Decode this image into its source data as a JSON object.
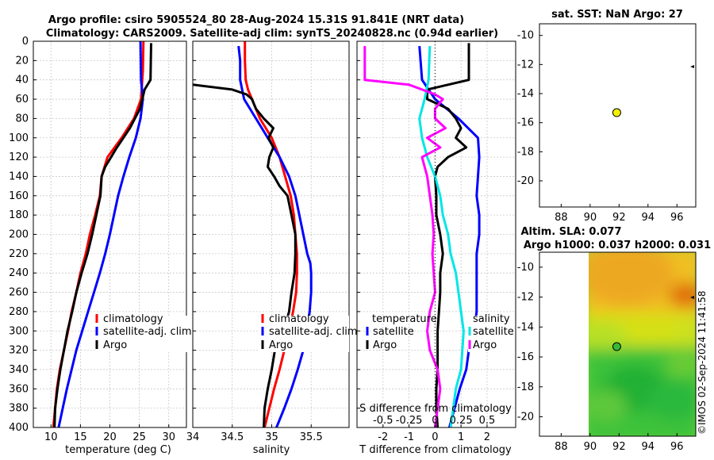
{
  "title": {
    "line1": "Argo profile: csiro 5905524_80 28-Aug-2024 15.31S 91.841E (NRT data)",
    "line2": "Climatology: CARS2009. Satellite-adj clim: synTS_20240828.nc (0.94d earlier)"
  },
  "stamp": "©IMOS 02-Sep-2024 11:41:58",
  "colors": {
    "climatology": "#ff0000",
    "satellite": "#0000ff",
    "argo": "#000000",
    "t_satellite": "#00e6e6",
    "s_diff": "#ff00ff"
  },
  "chart_data": [
    {
      "type": "line",
      "name": "temperature",
      "xlabel": "temperature (deg C)",
      "xlim": [
        7,
        33
      ],
      "ylim": [
        400,
        0
      ],
      "yticks": [
        0,
        20,
        40,
        60,
        80,
        100,
        120,
        140,
        160,
        180,
        200,
        220,
        240,
        260,
        280,
        300,
        320,
        340,
        360,
        380,
        400
      ],
      "xticks": [
        10,
        15,
        20,
        25,
        30
      ],
      "legend": [
        "climatology",
        "satellite-adj. clim",
        "Argo"
      ],
      "series": [
        {
          "name": "climatology",
          "color": "#ff0000",
          "depth": [
            0,
            30,
            60,
            80,
            100,
            120,
            140,
            160,
            180,
            200,
            220,
            240,
            260,
            280,
            300,
            320,
            340,
            360,
            380,
            400
          ],
          "values": [
            25.7,
            25.6,
            25.3,
            24.1,
            22,
            19.6,
            18.6,
            18.3,
            17.5,
            16.6,
            15.9,
            15,
            14.3,
            13.5,
            12.9,
            12.2,
            11.5,
            11,
            10.7,
            10.4
          ]
        },
        {
          "name": "satellite-adj. clim",
          "color": "#0000ff",
          "depth": [
            0,
            40,
            60,
            80,
            100,
            120,
            140,
            160,
            180,
            200,
            220,
            240,
            260,
            280,
            300,
            320,
            340,
            360,
            380,
            400
          ],
          "values": [
            25.2,
            25.3,
            25.6,
            25.2,
            24.4,
            23.3,
            22.3,
            21.4,
            20.7,
            20,
            19.2,
            18.3,
            17.3,
            16.3,
            15.3,
            14.3,
            13.5,
            12.7,
            12,
            11.3
          ]
        },
        {
          "name": "Argo",
          "color": "#000000",
          "depth": [
            2,
            40,
            50,
            70,
            90,
            110,
            130,
            140,
            160,
            180,
            200,
            220,
            240,
            260,
            280,
            300,
            320,
            340,
            360,
            380,
            400
          ],
          "values": [
            27,
            26.9,
            25.9,
            25.1,
            23.4,
            21.2,
            19.2,
            18.6,
            18.4,
            17.7,
            17,
            16.2,
            15.2,
            14.3,
            13.6,
            12.8,
            12.2,
            11.6,
            11.1,
            10.7,
            10.6
          ]
        }
      ]
    },
    {
      "type": "line",
      "name": "salinity",
      "xlabel": "salinity",
      "xlim": [
        34,
        35.98
      ],
      "ylim": [
        400,
        0
      ],
      "xticks": [
        34,
        34.5,
        35,
        35.5
      ],
      "legend": [
        "climatology",
        "satellite-adj. clim",
        "Argo"
      ],
      "series": [
        {
          "name": "climatology",
          "color": "#ff0000",
          "depth": [
            0,
            20,
            40,
            50,
            60,
            80,
            100,
            120,
            140,
            160,
            180,
            200,
            220,
            240,
            260,
            280,
            300,
            320,
            340,
            360,
            380,
            400
          ],
          "values": [
            34.66,
            34.66,
            34.67,
            34.7,
            34.75,
            34.85,
            35,
            35.1,
            35.17,
            35.24,
            35.28,
            35.3,
            35.32,
            35.32,
            35.31,
            35.27,
            35.22,
            35.16,
            35.1,
            35.03,
            34.97,
            34.91
          ]
        },
        {
          "name": "satellite-adj. clim",
          "color": "#0000ff",
          "depth": [
            5,
            20,
            40,
            60,
            80,
            100,
            120,
            140,
            160,
            180,
            200,
            220,
            230,
            240,
            260,
            280,
            300,
            320,
            340,
            360,
            380,
            400
          ],
          "values": [
            34.58,
            34.6,
            34.6,
            34.65,
            34.8,
            34.95,
            35.1,
            35.22,
            35.3,
            35.35,
            35.4,
            35.45,
            35.49,
            35.5,
            35.5,
            35.48,
            35.45,
            35.4,
            35.33,
            35.25,
            35.16,
            35.06
          ]
        },
        {
          "name": "Argo",
          "color": "#000000",
          "depth": [
            45,
            50,
            55,
            60,
            70,
            80,
            90,
            100,
            110,
            120,
            130,
            140,
            150,
            160,
            180,
            200,
            220,
            240,
            260,
            280,
            300,
            320,
            340,
            360,
            380,
            400
          ],
          "values": [
            34.0,
            34.5,
            34.68,
            34.75,
            34.8,
            34.9,
            35.02,
            34.96,
            35.02,
            34.97,
            34.95,
            35.03,
            35.1,
            35.2,
            35.25,
            35.3,
            35.3,
            35.29,
            35.25,
            35.22,
            35.15,
            35.04,
            35.0,
            34.95,
            34.91,
            34.9
          ]
        }
      ]
    },
    {
      "type": "line",
      "name": "difference",
      "xlabel": "T difference from climatology",
      "xlabel_top": "S difference from climatology",
      "xlim": [
        -3,
        3.1
      ],
      "ylim": [
        400,
        0
      ],
      "xticks": [
        -2,
        -1,
        0,
        1,
        2
      ],
      "s_ticks": [
        "-0.5",
        "-0.25",
        "0",
        "0.25",
        "0.5"
      ],
      "s_tick_positions": [
        -2,
        -1,
        0,
        1,
        2
      ],
      "legend_temperature": [
        "temperature",
        "satellite",
        "Argo"
      ],
      "legend_salinity": [
        "salinity",
        "satellite",
        "Argo"
      ],
      "series": [
        {
          "name": "T satellite",
          "color": "#0000ff",
          "depth": [
            5,
            40,
            60,
            80,
            100,
            120,
            140,
            160,
            180,
            200,
            220,
            240,
            260,
            280,
            300,
            320,
            340,
            360,
            380,
            400
          ],
          "values": [
            -0.6,
            -0.5,
            0,
            0.9,
            1.65,
            1.7,
            1.65,
            1.6,
            1.7,
            1.7,
            1.6,
            1.6,
            1.6,
            1.6,
            1.5,
            1.3,
            1.2,
            0.95,
            0.75,
            0.55
          ]
        },
        {
          "name": "T Argo",
          "color": "#000000",
          "depth": [
            2,
            40,
            45,
            50,
            60,
            70,
            80,
            90,
            100,
            110,
            120,
            130,
            140,
            160,
            180,
            200,
            220,
            240,
            260,
            280,
            300,
            320,
            340,
            360,
            380,
            400
          ],
          "values": [
            1.3,
            1.3,
            0.5,
            -0.3,
            -0.3,
            0.5,
            0.8,
            1,
            0.8,
            1.2,
            0.5,
            0.1,
            0,
            0.05,
            0.05,
            0.2,
            0.3,
            0.2,
            0.2,
            0.15,
            0.1,
            0.1,
            0.1,
            0.05,
            0.05,
            0.1
          ]
        },
        {
          "name": "S satellite",
          "color": "#00e6e6",
          "depth": [
            5,
            40,
            60,
            80,
            100,
            120,
            140,
            160,
            180,
            200,
            220,
            240,
            260,
            280,
            300,
            320,
            340,
            360,
            380,
            400
          ],
          "values": [
            -0.2,
            -0.25,
            -0.4,
            -0.6,
            -0.5,
            -0.3,
            0,
            0.2,
            0.3,
            0.5,
            0.6,
            0.8,
            0.9,
            1,
            1.1,
            1.05,
            1,
            0.8,
            0.7,
            0.6
          ]
        },
        {
          "name": "S Argo",
          "color": "#ff00ff",
          "depth": [
            5,
            40,
            45,
            55,
            60,
            70,
            80,
            90,
            100,
            110,
            120,
            130,
            140,
            160,
            180,
            200,
            220,
            240,
            260,
            280,
            300,
            320,
            340,
            360,
            380,
            400
          ],
          "values": [
            -2.7,
            -2.7,
            -1,
            0,
            0.3,
            0,
            0,
            0.4,
            -0.3,
            0.2,
            -0.5,
            -0.4,
            -0.3,
            -0.2,
            -0.1,
            -0.05,
            -0.1,
            -0.05,
            0,
            -0.2,
            -0.3,
            -0.2,
            0.1,
            0.2,
            0.1,
            0
          ]
        }
      ]
    },
    {
      "type": "scatter",
      "name": "sat_sst_map",
      "title": "sat. SST: NaN Argo: 27",
      "xlim": [
        86.5,
        97.3
      ],
      "ylim": [
        -21.8,
        -9.2
      ],
      "xticks": [
        88,
        90,
        92,
        94,
        96
      ],
      "yticks": [
        -10,
        -12,
        -14,
        -16,
        -18,
        -20
      ],
      "points": [
        {
          "x": 91.841,
          "y": -15.31,
          "color": "#f5f000"
        }
      ]
    },
    {
      "type": "heatmap",
      "name": "altimetry_map",
      "title_line1": "Altim. SLA: 0.077",
      "title_line2": "Argo h1000: 0.037 h2000: 0.031",
      "xlim": [
        86.5,
        97.3
      ],
      "ylim": [
        -21.3,
        -9.0
      ],
      "xticks": [
        88,
        90,
        92,
        94,
        96
      ],
      "yticks": [
        -10,
        -12,
        -14,
        -16,
        -18,
        -20
      ],
      "data_lon_range": [
        90,
        97.3
      ],
      "points": [
        {
          "x": 91.841,
          "y": -15.31,
          "color": "#38b838"
        }
      ]
    }
  ]
}
